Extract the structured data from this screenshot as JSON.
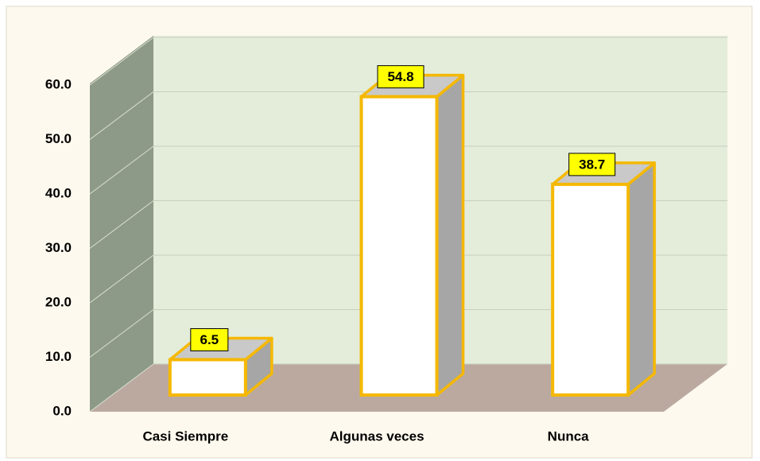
{
  "chart_data": {
    "type": "bar3d",
    "categories": [
      "Casi Siempre",
      "Algunas veces",
      "Nunca"
    ],
    "values": [
      6.5,
      54.8,
      38.7
    ],
    "color": "#ffffff",
    "edge_color": "#f5b800",
    "side_color": "#a6a6a6",
    "top_color": "#c9c9c9",
    "label_color": "#ffff00",
    "ylim": [
      0,
      60
    ],
    "yticks": [
      {
        "value": 0,
        "label": "0.0"
      },
      {
        "value": 10,
        "label": "10.0"
      },
      {
        "value": 20,
        "label": "20.0"
      },
      {
        "value": 30,
        "label": "30.0"
      },
      {
        "value": 40,
        "label": "40.0"
      },
      {
        "value": 50,
        "label": "50.0"
      },
      {
        "value": 60,
        "label": "60.0"
      }
    ],
    "grid": true
  }
}
